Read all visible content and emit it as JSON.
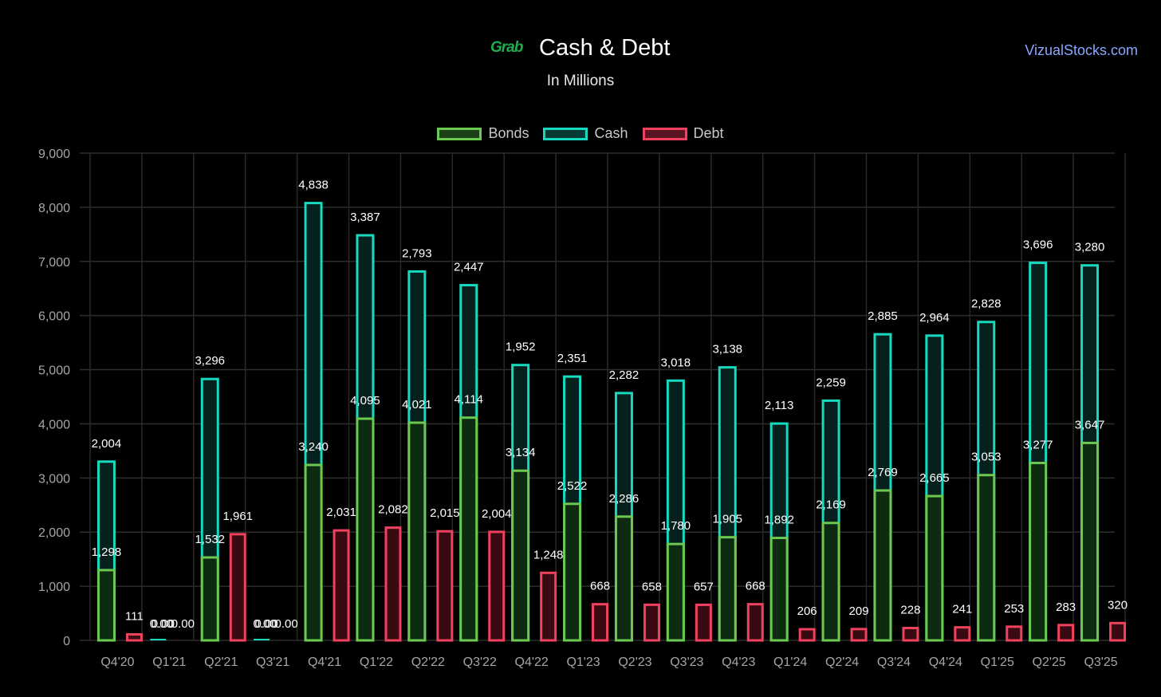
{
  "header": {
    "logo_text": "Grab",
    "title": "Cash & Debt",
    "subtitle": "In Millions",
    "brand": "VizualStocks.com"
  },
  "chart_data": {
    "type": "bar",
    "title": "Cash & Debt",
    "subtitle": "In Millions",
    "categories": [
      "Q4'20",
      "Q1'21",
      "Q2'21",
      "Q3'21",
      "Q4'21",
      "Q1'22",
      "Q2'22",
      "Q3'22",
      "Q4'22",
      "Q1'23",
      "Q2'23",
      "Q3'23",
      "Q4'23",
      "Q1'24",
      "Q2'24",
      "Q3'24",
      "Q4'24",
      "Q1'25",
      "Q2'25",
      "Q3'25"
    ],
    "series": [
      {
        "name": "Bonds",
        "color": "#6cc94f",
        "fill": "#0d2b10",
        "values": [
          1298,
          0,
          1532,
          0,
          3240,
          4095,
          4021,
          4114,
          3134,
          2522,
          2286,
          1780,
          1905,
          1892,
          2169,
          2769,
          2665,
          3053,
          3277,
          3647
        ]
      },
      {
        "name": "Cash",
        "color": "#17d9c0",
        "fill": "#06201d",
        "stacked_on": "Bonds",
        "values": [
          2004,
          0,
          3296,
          0,
          4838,
          3387,
          2793,
          2447,
          1952,
          2351,
          2282,
          3018,
          3138,
          2113,
          2259,
          2885,
          2964,
          2828,
          3696,
          3280
        ]
      },
      {
        "name": "Debt",
        "color": "#f0425f",
        "fill": "#3a0a12",
        "values": [
          111,
          0,
          1961,
          0,
          2031,
          2082,
          2015,
          2004,
          1248,
          668,
          658,
          657,
          668,
          206,
          209,
          228,
          241,
          253,
          283,
          320
        ]
      }
    ],
    "data_labels": {
      "Bonds": [
        "1,298",
        "0.00",
        "1,532",
        "0.00",
        "3,240",
        "4,095",
        "4,021",
        "4,114",
        "3,134",
        "2,522",
        "2,286",
        "1,780",
        "1,905",
        "1,892",
        "2,169",
        "2,769",
        "2,665",
        "3,053",
        "3,277",
        "3,647"
      ],
      "Cash": [
        "2,004",
        "0.00",
        "3,296",
        "0.00",
        "4,838",
        "3,387",
        "2,793",
        "2,447",
        "1,952",
        "2,351",
        "2,282",
        "3,018",
        "3,138",
        "2,113",
        "2,259",
        "2,885",
        "2,964",
        "2,828",
        "3,696",
        "3,280"
      ],
      "Debt": [
        "111",
        "0.00",
        "1,961",
        "0.00",
        "2,031",
        "2,082",
        "2,015",
        "2,004",
        "1,248",
        "668",
        "658",
        "657",
        "668",
        "206",
        "209",
        "228",
        "241",
        "253",
        "283",
        "320"
      ]
    },
    "ylim": [
      0,
      9000
    ],
    "yticks": [
      "0",
      "1,000",
      "2,000",
      "3,000",
      "4,000",
      "5,000",
      "6,000",
      "7,000",
      "8,000",
      "9,000"
    ],
    "grid": true,
    "legend": "top-center",
    "xlabel": "",
    "ylabel": ""
  }
}
